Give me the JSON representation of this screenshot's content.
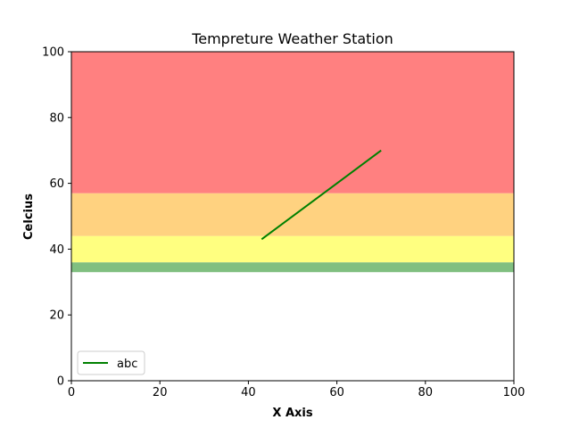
{
  "chart_data": {
    "type": "line",
    "title": "Tempreture Weather Station",
    "xlabel": "X Axis",
    "ylabel": "Celcius",
    "xlim": [
      0,
      100
    ],
    "ylim": [
      0,
      100
    ],
    "x_ticks": [
      0,
      20,
      40,
      60,
      80,
      100
    ],
    "y_ticks": [
      0,
      20,
      40,
      60,
      80,
      100
    ],
    "grid": false,
    "legend_position": "lower-left",
    "bands": [
      {
        "y_from": 33,
        "y_to": 36,
        "color": "#80bf80"
      },
      {
        "y_from": 36,
        "y_to": 44,
        "color": "#ffff80"
      },
      {
        "y_from": 44,
        "y_to": 57,
        "color": "#ffd280"
      },
      {
        "y_from": 57,
        "y_to": 100,
        "color": "#ff8080"
      }
    ],
    "series": [
      {
        "name": "abc",
        "color": "#008000",
        "x": [
          43,
          70
        ],
        "y": [
          43,
          70
        ]
      }
    ]
  }
}
